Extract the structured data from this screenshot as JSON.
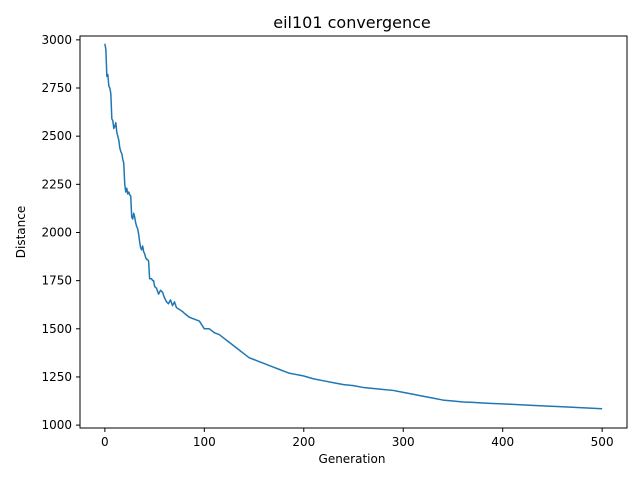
{
  "chart_data": {
    "type": "line",
    "title": "eil101 convergence",
    "xlabel": "Generation",
    "ylabel": "Distance",
    "xlim": [
      -25,
      525
    ],
    "ylim": [
      985,
      3020
    ],
    "xticks": [
      0,
      100,
      200,
      300,
      400,
      500
    ],
    "yticks": [
      1000,
      1250,
      1500,
      1750,
      2000,
      2250,
      2500,
      2750,
      3000
    ],
    "grid": false,
    "legend": "none",
    "series": [
      {
        "color": "#1f77b4",
        "x": [
          0,
          1,
          2,
          3,
          4,
          5,
          6,
          7,
          8,
          9,
          10,
          11,
          12,
          13,
          14,
          15,
          16,
          17,
          18,
          19,
          20,
          21,
          22,
          23,
          24,
          25,
          26,
          27,
          28,
          29,
          30,
          31,
          32,
          33,
          34,
          35,
          36,
          37,
          38,
          39,
          40,
          41,
          42,
          43,
          44,
          45,
          46,
          47,
          48,
          49,
          50,
          52,
          54,
          56,
          58,
          60,
          62,
          64,
          66,
          68,
          70,
          72,
          75,
          78,
          80,
          85,
          90,
          95,
          100,
          105,
          110,
          115,
          120,
          125,
          130,
          135,
          140,
          145,
          150,
          155,
          160,
          165,
          170,
          175,
          180,
          185,
          190,
          195,
          200,
          210,
          220,
          230,
          240,
          250,
          260,
          270,
          280,
          290,
          300,
          310,
          320,
          330,
          340,
          350,
          360,
          370,
          380,
          390,
          400,
          420,
          440,
          460,
          480,
          500
        ],
        "y": [
          2980,
          2950,
          2810,
          2820,
          2760,
          2750,
          2720,
          2590,
          2580,
          2540,
          2550,
          2570,
          2520,
          2500,
          2480,
          2440,
          2420,
          2410,
          2380,
          2360,
          2250,
          2210,
          2230,
          2200,
          2210,
          2195,
          2190,
          2080,
          2070,
          2100,
          2080,
          2050,
          2030,
          2020,
          1990,
          1950,
          1920,
          1910,
          1930,
          1900,
          1890,
          1870,
          1860,
          1860,
          1850,
          1760,
          1760,
          1760,
          1750,
          1750,
          1720,
          1710,
          1680,
          1700,
          1690,
          1660,
          1640,
          1630,
          1650,
          1620,
          1640,
          1610,
          1600,
          1590,
          1580,
          1560,
          1550,
          1540,
          1500,
          1500,
          1480,
          1470,
          1450,
          1430,
          1410,
          1390,
          1370,
          1350,
          1340,
          1330,
          1320,
          1310,
          1300,
          1290,
          1280,
          1270,
          1265,
          1260,
          1255,
          1240,
          1230,
          1220,
          1210,
          1205,
          1195,
          1190,
          1185,
          1180,
          1170,
          1160,
          1150,
          1140,
          1130,
          1125,
          1120,
          1118,
          1115,
          1112,
          1110,
          1105,
          1100,
          1095,
          1090,
          1085
        ]
      }
    ]
  }
}
